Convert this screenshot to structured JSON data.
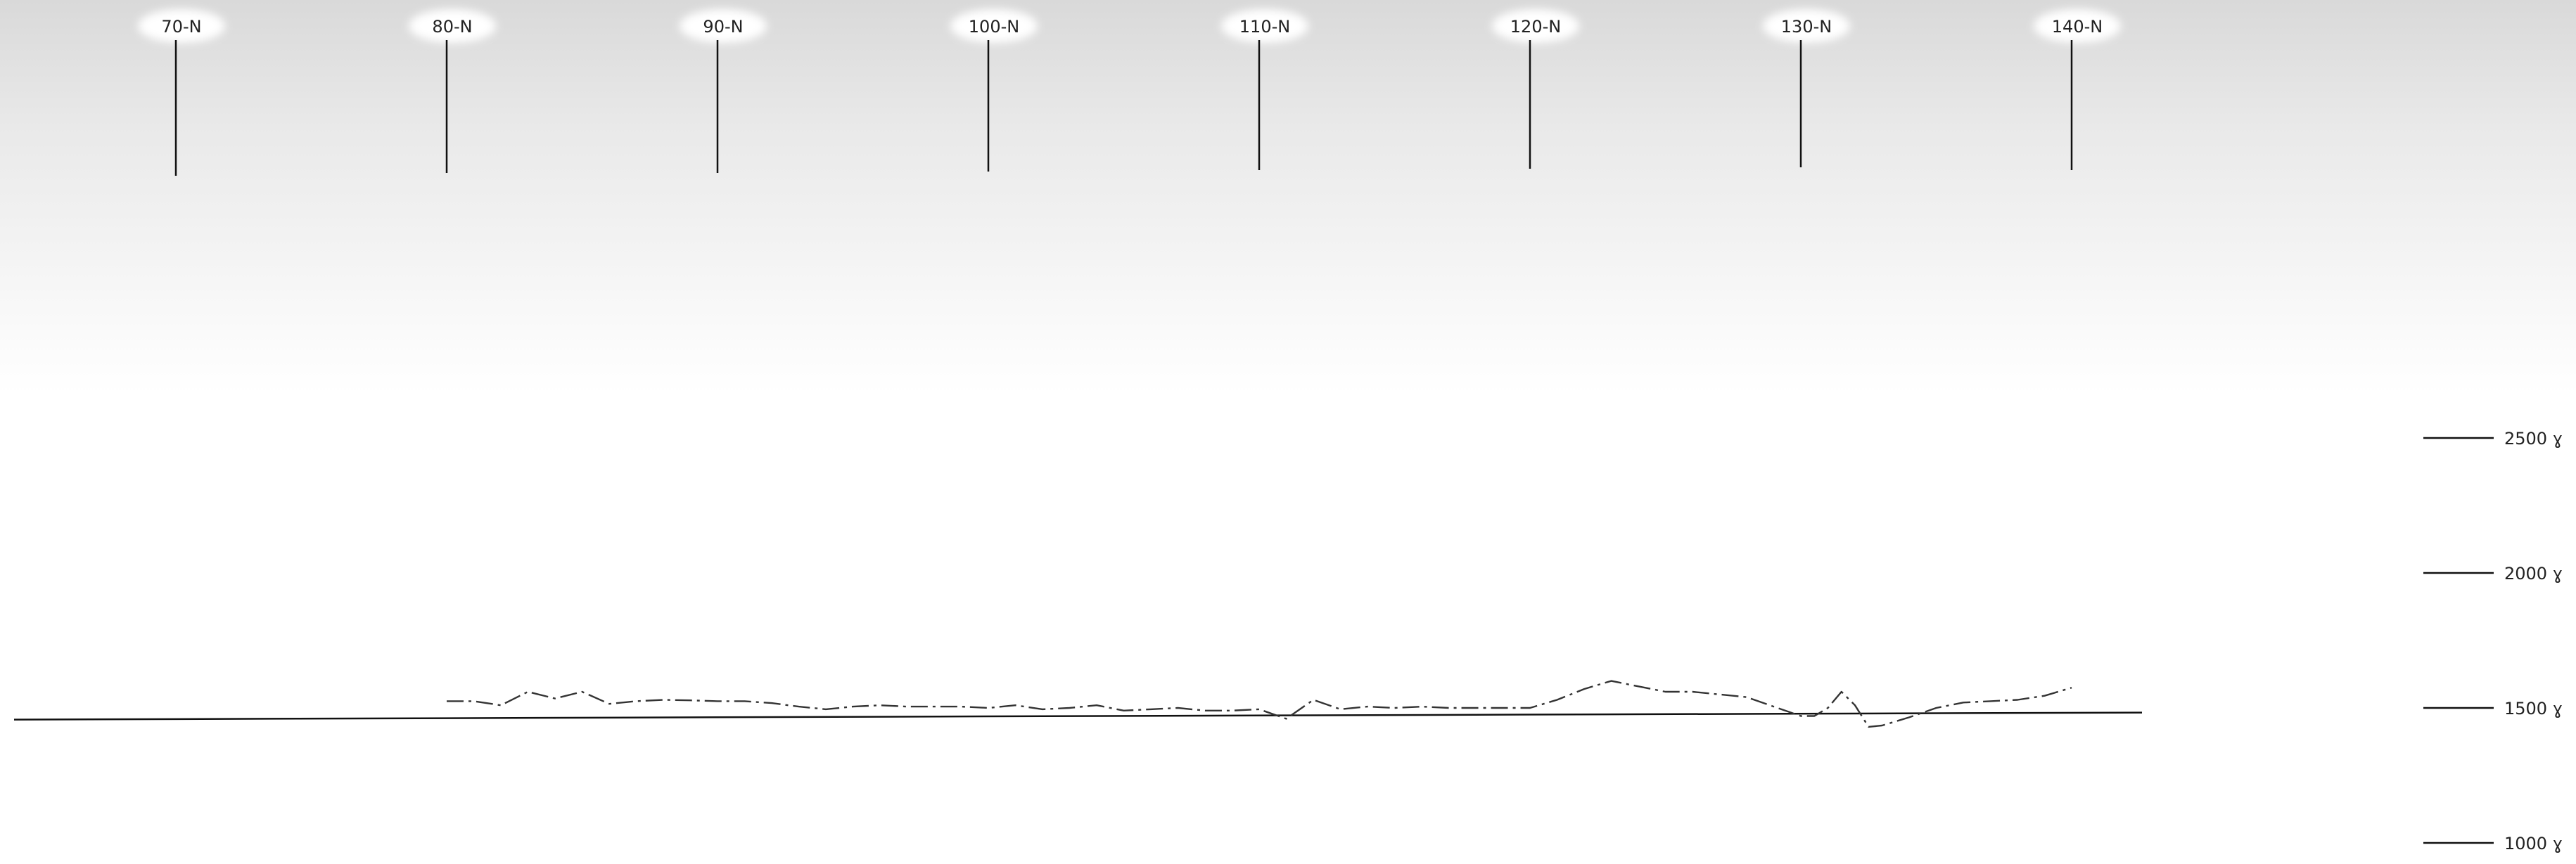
{
  "chart_data": {
    "type": "line",
    "title": "",
    "xlabel": "",
    "ylabel": "",
    "x_tick_labels": [
      "70-N",
      "80-N",
      "90-N",
      "100-N",
      "110-N",
      "120-N",
      "130-N",
      "140-N"
    ],
    "x_ticks": [
      70,
      80,
      90,
      100,
      110,
      120,
      130,
      140
    ],
    "xlim": [
      70,
      140
    ],
    "y_tick_labels": [
      "2500 ɣ",
      "2000 ɣ",
      "1500 ɣ",
      "1000 ɣ"
    ],
    "y_ticks": [
      2500,
      2000,
      1500,
      1000
    ],
    "ylim": [
      1000,
      2500
    ],
    "baseline_value": 1475,
    "series": [
      {
        "line_style": "dash-dot",
        "color": "#333333",
        "x": [
          80,
          81,
          82,
          83,
          84,
          85,
          86,
          87,
          88,
          89,
          90,
          91,
          92,
          93,
          94,
          95,
          96,
          97,
          98,
          99,
          100,
          101,
          102,
          103,
          104,
          105,
          106,
          107,
          108,
          109,
          110,
          111,
          112,
          113,
          114,
          115,
          116,
          117,
          118,
          119,
          120,
          121,
          122,
          123,
          124,
          125,
          126,
          127,
          128,
          129,
          130,
          130.5,
          131,
          131.5,
          132,
          132.5,
          133,
          134,
          135,
          136,
          137,
          138,
          139,
          140
        ],
        "y": [
          1525,
          1525,
          1510,
          1560,
          1535,
          1560,
          1515,
          1525,
          1530,
          1528,
          1525,
          1525,
          1518,
          1505,
          1495,
          1505,
          1510,
          1505,
          1505,
          1505,
          1500,
          1510,
          1495,
          1500,
          1510,
          1490,
          1495,
          1500,
          1490,
          1490,
          1495,
          1460,
          1530,
          1495,
          1505,
          1500,
          1505,
          1500,
          1500,
          1500,
          1500,
          1530,
          1570,
          1600,
          1580,
          1560,
          1560,
          1550,
          1540,
          1505,
          1470,
          1470,
          1500,
          1560,
          1510,
          1430,
          1435,
          1465,
          1500,
          1520,
          1525,
          1530,
          1545,
          1575
        ]
      }
    ]
  }
}
